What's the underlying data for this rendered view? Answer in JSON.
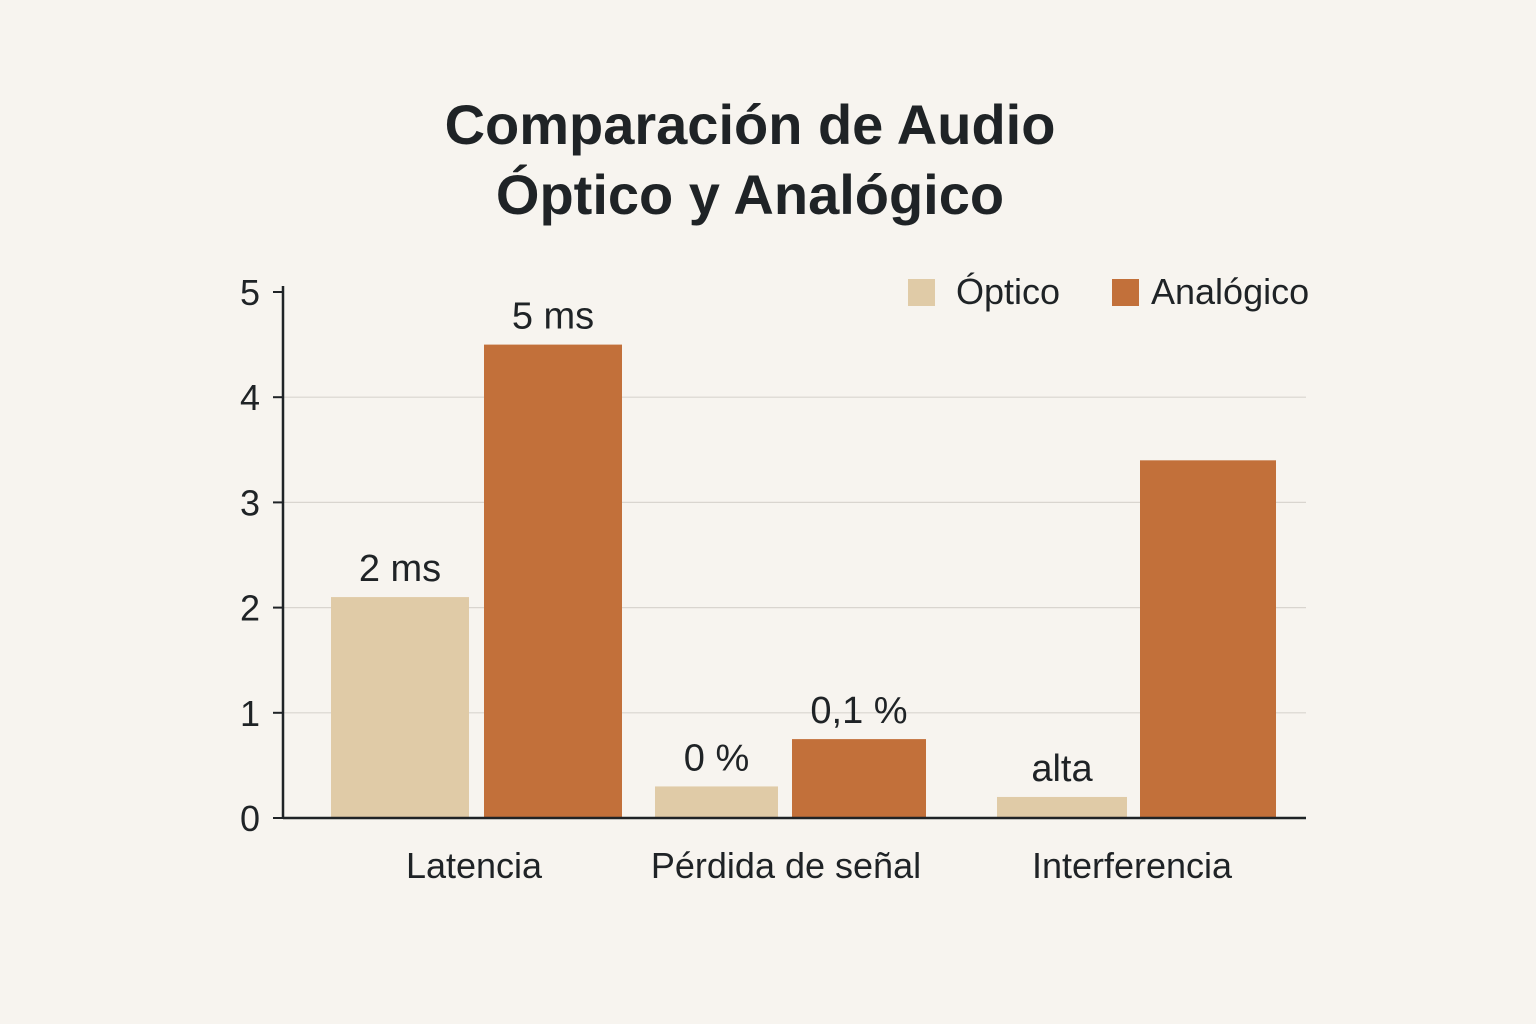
{
  "chart_data": {
    "type": "bar",
    "title_lines": [
      "Comparación de Audio",
      "Óptico y Analógico"
    ],
    "categories": [
      "Latencia",
      "Pérdida de señal",
      "Interferencia"
    ],
    "series": [
      {
        "name": "Óptico",
        "color": "#e0cba7",
        "values": [
          2.1,
          0.3,
          0.2
        ],
        "labels": [
          "2 ms",
          "0 %",
          "alta"
        ]
      },
      {
        "name": "Analógico",
        "color": "#c2703a",
        "values": [
          4.5,
          0.75,
          3.4
        ],
        "labels": [
          "5 ms",
          "0,1 %",
          ""
        ]
      }
    ],
    "yticks": [
      "0",
      "1",
      "2",
      "3",
      "4",
      "5"
    ],
    "ylim": [
      0,
      5
    ],
    "grid": true,
    "legend_position": "top-right"
  }
}
